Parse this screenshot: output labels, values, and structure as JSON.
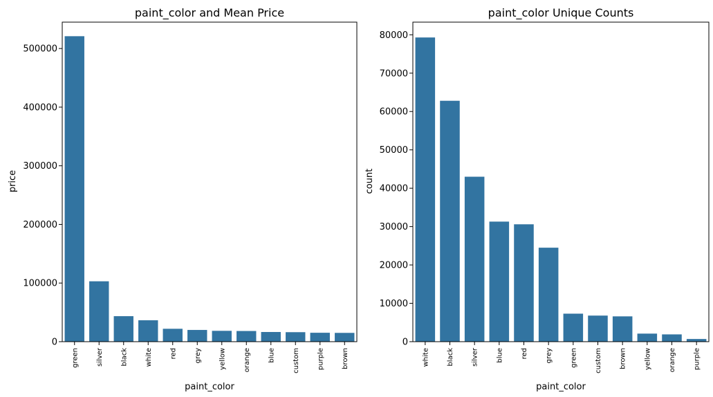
{
  "chart_data": [
    {
      "type": "bar",
      "title": "paint_color and Mean Price",
      "xlabel": "paint_color",
      "ylabel": "price",
      "categories": [
        "green",
        "silver",
        "black",
        "white",
        "red",
        "grey",
        "yellow",
        "orange",
        "blue",
        "custom",
        "purple",
        "brown"
      ],
      "values": [
        521000,
        103000,
        43500,
        36500,
        22000,
        20000,
        18500,
        18200,
        16500,
        16200,
        15200,
        15000
      ],
      "ylim": [
        0,
        545000
      ],
      "yticks": [
        0,
        100000,
        200000,
        300000,
        400000,
        500000
      ],
      "grid": false,
      "bar_color": "#3274a1"
    },
    {
      "type": "bar",
      "title": "paint_color Unique Counts",
      "xlabel": "paint_color",
      "ylabel": "count",
      "categories": [
        "white",
        "black",
        "silver",
        "blue",
        "red",
        "grey",
        "green",
        "custom",
        "brown",
        "yellow",
        "orange",
        "purple"
      ],
      "values": [
        79300,
        62800,
        43000,
        31300,
        30600,
        24500,
        7300,
        6800,
        6600,
        2100,
        1900,
        700
      ],
      "ylim": [
        0,
        83300
      ],
      "yticks": [
        0,
        10000,
        20000,
        30000,
        40000,
        50000,
        60000,
        70000,
        80000
      ],
      "grid": false,
      "bar_color": "#3274a1"
    }
  ]
}
